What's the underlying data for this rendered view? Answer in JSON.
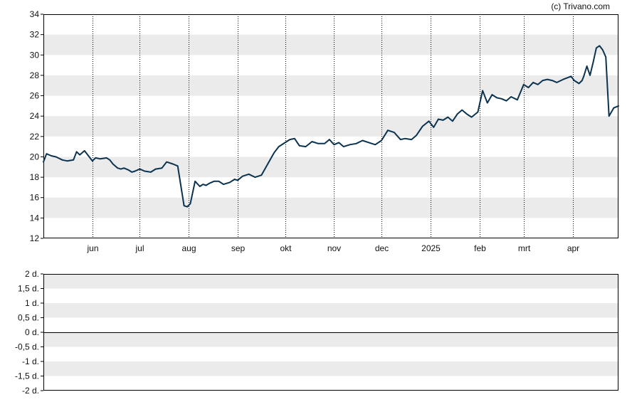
{
  "credit": "(c) Trivano.com",
  "colors": {
    "line": "#0b3350",
    "band": "#ebebeb",
    "frame": "#000000",
    "monthGrid": "#000000"
  },
  "chart_data": [
    {
      "type": "line",
      "name": "price-panel",
      "title": "",
      "xlabel": "",
      "ylabel": "",
      "ylim": [
        12,
        34
      ],
      "y_ticks": [
        12,
        14,
        16,
        18,
        20,
        22,
        24,
        26,
        28,
        30,
        32,
        34
      ],
      "y_tick_labels": [
        "12",
        "14",
        "16",
        "18",
        "20",
        "22",
        "24",
        "26",
        "28",
        "30",
        "32",
        "34"
      ],
      "bands": [
        [
          14,
          16
        ],
        [
          18,
          20
        ],
        [
          22,
          24
        ],
        [
          26,
          28
        ],
        [
          30,
          32
        ]
      ],
      "x_axis": {
        "start": "2024-05-01",
        "end": "2025-04-30",
        "month_ticks": [
          {
            "label": "jun",
            "date": "2024-06-01"
          },
          {
            "label": "jul",
            "date": "2024-07-01"
          },
          {
            "label": "aug",
            "date": "2024-08-01"
          },
          {
            "label": "sep",
            "date": "2024-09-01"
          },
          {
            "label": "okt",
            "date": "2024-10-01"
          },
          {
            "label": "nov",
            "date": "2024-11-01"
          },
          {
            "label": "dec",
            "date": "2024-12-01"
          },
          {
            "label": "2025",
            "date": "2025-01-01"
          },
          {
            "label": "feb",
            "date": "2025-02-01"
          },
          {
            "label": "mrt",
            "date": "2025-03-01"
          },
          {
            "label": "apr",
            "date": "2025-04-01"
          }
        ]
      },
      "grid": {
        "vertical_dotted": true,
        "horizontal_bands": true
      },
      "series": [
        {
          "x": [
            "2024-05-01",
            "2024-05-03",
            "2024-05-06",
            "2024-05-09",
            "2024-05-13",
            "2024-05-16",
            "2024-05-20",
            "2024-05-22",
            "2024-05-24",
            "2024-05-27",
            "2024-05-29",
            "2024-06-01",
            "2024-06-03",
            "2024-06-06",
            "2024-06-10",
            "2024-06-12",
            "2024-06-14",
            "2024-06-17",
            "2024-06-19",
            "2024-06-21",
            "2024-06-24",
            "2024-06-26",
            "2024-06-28",
            "2024-07-01",
            "2024-07-04",
            "2024-07-08",
            "2024-07-11",
            "2024-07-15",
            "2024-07-18",
            "2024-07-22",
            "2024-07-25",
            "2024-07-29",
            "2024-07-31",
            "2024-08-02",
            "2024-08-05",
            "2024-08-08",
            "2024-08-10",
            "2024-08-12",
            "2024-08-14",
            "2024-08-17",
            "2024-08-20",
            "2024-08-23",
            "2024-08-27",
            "2024-08-30",
            "2024-09-01",
            "2024-09-04",
            "2024-09-08",
            "2024-09-12",
            "2024-09-16",
            "2024-09-20",
            "2024-09-24",
            "2024-09-27",
            "2024-10-01",
            "2024-10-04",
            "2024-10-07",
            "2024-10-10",
            "2024-10-14",
            "2024-10-18",
            "2024-10-22",
            "2024-10-26",
            "2024-10-29",
            "2024-11-01",
            "2024-11-04",
            "2024-11-07",
            "2024-11-11",
            "2024-11-15",
            "2024-11-19",
            "2024-11-23",
            "2024-11-27",
            "2024-12-01",
            "2024-12-05",
            "2024-12-09",
            "2024-12-13",
            "2024-12-16",
            "2024-12-20",
            "2024-12-23",
            "2024-12-27",
            "2024-12-31",
            "2025-01-03",
            "2025-01-06",
            "2025-01-09",
            "2025-01-12",
            "2025-01-15",
            "2025-01-18",
            "2025-01-21",
            "2025-01-24",
            "2025-01-27",
            "2025-01-31",
            "2025-02-03",
            "2025-02-06",
            "2025-02-09",
            "2025-02-12",
            "2025-02-15",
            "2025-02-18",
            "2025-02-21",
            "2025-02-25",
            "2025-03-01",
            "2025-03-04",
            "2025-03-07",
            "2025-03-10",
            "2025-03-13",
            "2025-03-16",
            "2025-03-19",
            "2025-03-22",
            "2025-03-26",
            "2025-03-31",
            "2025-04-02",
            "2025-04-05",
            "2025-04-07",
            "2025-04-08",
            "2025-04-10",
            "2025-04-12",
            "2025-04-14",
            "2025-04-16",
            "2025-04-18",
            "2025-04-20",
            "2025-04-22",
            "2025-04-24",
            "2025-04-27",
            "2025-04-30"
          ],
          "y": [
            19.5,
            20.3,
            20.1,
            20.0,
            19.7,
            19.6,
            19.7,
            20.5,
            20.2,
            20.6,
            20.2,
            19.6,
            19.9,
            19.8,
            19.9,
            19.7,
            19.3,
            18.9,
            18.8,
            18.9,
            18.7,
            18.5,
            18.6,
            18.8,
            18.6,
            18.5,
            18.8,
            18.9,
            19.5,
            19.3,
            19.1,
            15.2,
            15.1,
            15.4,
            17.6,
            17.1,
            17.3,
            17.2,
            17.4,
            17.6,
            17.6,
            17.3,
            17.5,
            17.8,
            17.7,
            18.1,
            18.3,
            18.0,
            18.2,
            19.3,
            20.4,
            21.0,
            21.4,
            21.7,
            21.8,
            21.1,
            21.0,
            21.5,
            21.3,
            21.3,
            21.7,
            21.2,
            21.4,
            21.0,
            21.2,
            21.3,
            21.6,
            21.4,
            21.2,
            21.6,
            22.6,
            22.4,
            21.7,
            21.8,
            21.7,
            22.1,
            23.0,
            23.5,
            22.9,
            23.7,
            23.6,
            23.9,
            23.5,
            24.2,
            24.6,
            24.2,
            23.9,
            24.4,
            26.5,
            25.3,
            26.1,
            25.8,
            25.7,
            25.5,
            25.9,
            25.6,
            27.1,
            26.8,
            27.3,
            27.1,
            27.5,
            27.6,
            27.5,
            27.3,
            27.6,
            27.9,
            27.5,
            27.2,
            27.5,
            27.9,
            28.9,
            28.0,
            29.3,
            30.7,
            30.9,
            30.5,
            29.8,
            24.0,
            24.8,
            25.0
          ]
        }
      ]
    },
    {
      "type": "line",
      "name": "dividend-panel",
      "title": "",
      "xlabel": "",
      "ylabel": "",
      "ylim": [
        -2,
        2
      ],
      "y_ticks": [
        -2,
        -1.5,
        -1,
        -0.5,
        0,
        0.5,
        1,
        1.5,
        2
      ],
      "y_tick_labels": [
        "-2 d.",
        "-1,5 d.",
        "-1 d.",
        "-0,5 d.",
        "0 d.",
        "0,5 d.",
        "1 d.",
        "1,5 d.",
        "2 d."
      ],
      "bands": [
        [
          -1.5,
          -1.0
        ],
        [
          -0.5,
          0.0
        ],
        [
          0.5,
          1.0
        ],
        [
          1.5,
          2.0
        ]
      ],
      "zero_line": 0,
      "grid": {
        "vertical_dotted": false,
        "horizontal_bands": true
      },
      "series": []
    }
  ]
}
